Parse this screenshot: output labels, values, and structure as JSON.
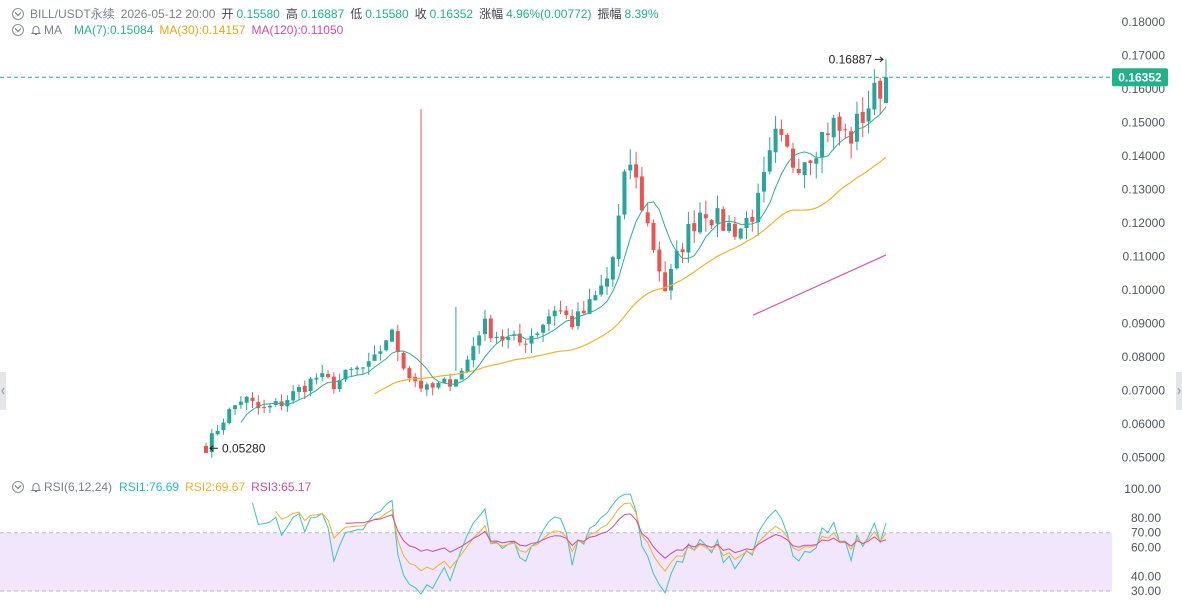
{
  "header": {
    "symbol": "BILL/USDT永续",
    "datetime": "2026-05-12 20:00",
    "open_label": "开",
    "open": "0.15580",
    "high_label": "高",
    "high": "0.16887",
    "low_label": "低",
    "low": "0.15580",
    "close_label": "收",
    "close": "0.16352",
    "change_label": "涨幅",
    "change": "4.96%(0.00772)",
    "amp_label": "振幅",
    "amp": "8.39%"
  },
  "ma_legend": {
    "name": "MA",
    "ma7": "MA(7):0.15084",
    "ma30": "MA(30):0.14157",
    "ma120": "MA(120):0.11050"
  },
  "rsi_legend": {
    "name": "RSI(6,12,24)",
    "rsi1": "RSI1:76.69",
    "rsi2": "RSI2:69.67",
    "rsi3": "RSI3:65.17"
  },
  "colors": {
    "up": "#26a69a",
    "down": "#ef5350",
    "ma7": "#27b294",
    "ma30": "#f5b322",
    "ma120": "#e052a8",
    "rsi1": "#37c6c6",
    "rsi2": "#f5b322",
    "rsi3": "#cf4ba6",
    "rsi_band": "#f1e6fb",
    "last_price_bg": "#1fb38a"
  },
  "icons": [
    "chevron-down-icon",
    "bell-icon",
    "arrow-left-icon",
    "arrow-right-icon"
  ],
  "chart_data": [
    {
      "type": "candlestick",
      "title": "BILL/USDT永续",
      "y_ticks": [
        "0.18000",
        "0.17000",
        "0.16000",
        "0.15000",
        "0.14000",
        "0.13000",
        "0.12000",
        "0.11000",
        "0.10000",
        "0.09000",
        "0.08000",
        "0.07000",
        "0.06000",
        "0.05000"
      ],
      "ylim": [
        0.0487,
        0.183
      ],
      "last_price": "0.16352",
      "high_annotation": "0.16887",
      "low_annotation": "0.05280",
      "last": {
        "open": 0.1558,
        "high": 0.16887,
        "low": 0.1558,
        "close": 0.16352
      },
      "approx_close_path": [
        0.053,
        0.062,
        0.068,
        0.064,
        0.066,
        0.07,
        0.074,
        0.072,
        0.076,
        0.077,
        0.088,
        0.075,
        0.07,
        0.072,
        0.076,
        0.09,
        0.086,
        0.084,
        0.088,
        0.095,
        0.09,
        0.096,
        0.105,
        0.14,
        0.12,
        0.1,
        0.115,
        0.125,
        0.12,
        0.118,
        0.125,
        0.145,
        0.138,
        0.142,
        0.15,
        0.145,
        0.155,
        0.1635
      ],
      "ma120_visible_range": [
        0.0925,
        0.1105
      ],
      "grid": false
    },
    {
      "type": "line",
      "title": "RSI(6,12,24)",
      "y_ticks": [
        "100.00",
        "80.00",
        "70.00",
        "60.00",
        "40.00",
        "30.00"
      ],
      "ylim": [
        30,
        100
      ],
      "band": [
        30,
        70
      ],
      "series": [
        {
          "name": "RSI1",
          "last": 76.69
        },
        {
          "name": "RSI2",
          "last": 69.67
        },
        {
          "name": "RSI3",
          "last": 65.17
        }
      ]
    }
  ]
}
